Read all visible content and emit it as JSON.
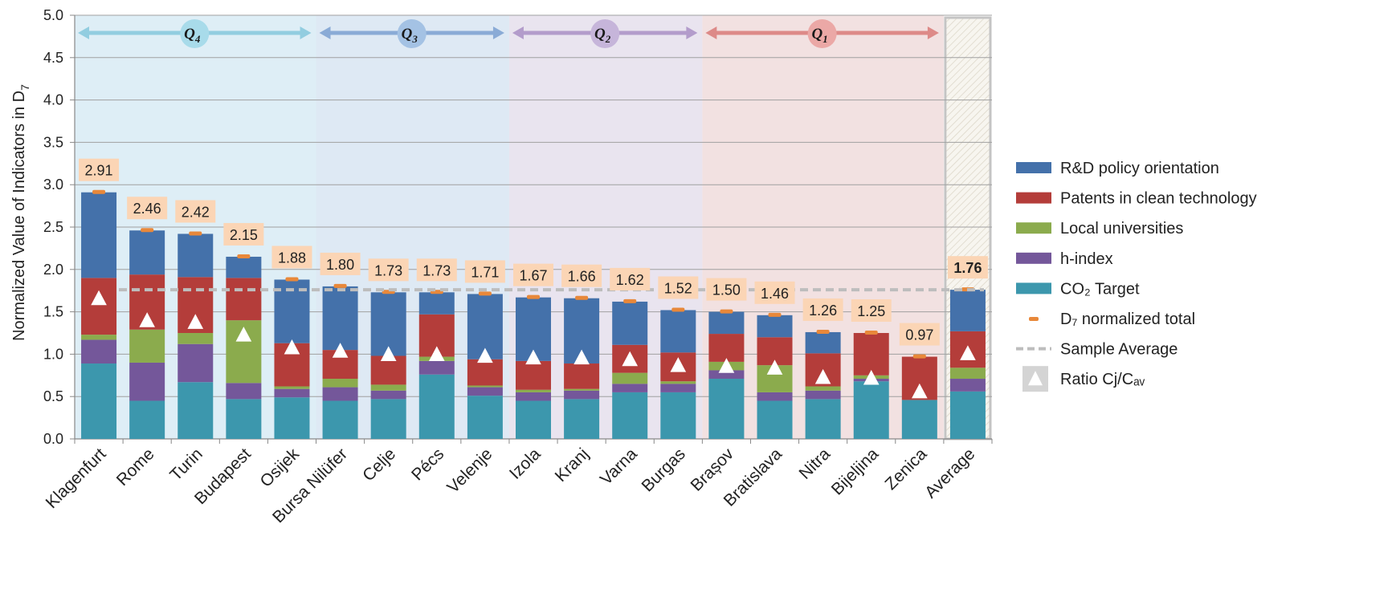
{
  "chart_data": {
    "type": "bar",
    "stacked": true,
    "ylabel": "Normalized Value of Indicators in D",
    "ylabel_sub": "7",
    "ylim": [
      0,
      5
    ],
    "yticks": [
      "0.0",
      "0.5",
      "1.0",
      "1.5",
      "2.0",
      "2.5",
      "3.0",
      "3.5",
      "4.0",
      "4.5",
      "5.0"
    ],
    "grid": true,
    "legend_position": "right",
    "categories": [
      "Klagenfurt",
      "Rome",
      "Turin",
      "Budapest",
      "Osijek",
      "Bursa Nilüfer",
      "Celje",
      "Pécs",
      "Velenje",
      "Izola",
      "Kranj",
      "Varna",
      "Burgas",
      "Brașov",
      "Bratislava",
      "Nitra",
      "Bijeljina",
      "Zenica",
      "Average"
    ],
    "series": [
      {
        "name": "CO₂ Target",
        "color": "#3c97ad",
        "values": [
          0.89,
          0.45,
          0.67,
          0.47,
          0.49,
          0.45,
          0.47,
          0.76,
          0.51,
          0.45,
          0.47,
          0.55,
          0.55,
          0.71,
          0.45,
          0.47,
          0.68,
          0.46,
          0.56
        ]
      },
      {
        "name": "h-index",
        "color": "#74579a",
        "values": [
          0.28,
          0.45,
          0.45,
          0.19,
          0.1,
          0.16,
          0.1,
          0.16,
          0.1,
          0.1,
          0.1,
          0.1,
          0.1,
          0.1,
          0.1,
          0.1,
          0.03,
          0.0,
          0.15
        ]
      },
      {
        "name": "Local universities",
        "color": "#8bab4d",
        "values": [
          0.06,
          0.39,
          0.13,
          0.74,
          0.03,
          0.1,
          0.07,
          0.05,
          0.02,
          0.03,
          0.02,
          0.13,
          0.03,
          0.1,
          0.32,
          0.05,
          0.04,
          0.0,
          0.13
        ]
      },
      {
        "name": "Patents in clean technology",
        "color": "#b43d3a",
        "values": [
          0.67,
          0.65,
          0.66,
          0.5,
          0.51,
          0.34,
          0.34,
          0.5,
          0.31,
          0.34,
          0.3,
          0.33,
          0.34,
          0.33,
          0.33,
          0.39,
          0.5,
          0.51,
          0.43
        ]
      },
      {
        "name": "R&D policy orientation",
        "color": "#4471aa",
        "values": [
          1.01,
          0.52,
          0.51,
          0.25,
          0.75,
          0.75,
          0.75,
          0.26,
          0.77,
          0.75,
          0.77,
          0.51,
          0.5,
          0.26,
          0.26,
          0.25,
          0.0,
          0.0,
          0.49
        ]
      }
    ],
    "totals": [
      2.91,
      2.46,
      2.42,
      2.15,
      1.88,
      1.8,
      1.73,
      1.73,
      1.71,
      1.67,
      1.66,
      1.62,
      1.52,
      1.5,
      1.46,
      1.26,
      1.25,
      0.97,
      1.76
    ],
    "total_labels": [
      "2.91",
      "2.46",
      "2.42",
      "2.15",
      "1.88",
      "1.80",
      "1.73",
      "1.73",
      "1.71",
      "1.67",
      "1.66",
      "1.62",
      "1.52",
      "1.50",
      "1.46",
      "1.26",
      "1.25",
      "0.97",
      "1.76"
    ],
    "ratio_markers": [
      1.65,
      1.39,
      1.37,
      1.22,
      1.07,
      1.03,
      0.99,
      0.99,
      0.97,
      0.95,
      0.95,
      0.93,
      0.86,
      0.85,
      0.83,
      0.72,
      0.71,
      0.55,
      1.0
    ],
    "sample_average": 1.76,
    "total_marker_color": "#e8883a",
    "label_box_color": "#fbd5b5",
    "quartiles": [
      {
        "label": "Q",
        "sub": "4",
        "start": 0,
        "end": 4,
        "band_color": "#deeef6",
        "arrow_color": "#92cde0",
        "badge_color": "#a8dbea"
      },
      {
        "label": "Q",
        "sub": "3",
        "start": 5,
        "end": 8,
        "band_color": "#dee9f4",
        "arrow_color": "#8aabd6",
        "badge_color": "#a4c2e4"
      },
      {
        "label": "Q",
        "sub": "2",
        "start": 9,
        "end": 12,
        "band_color": "#e9e4ef",
        "arrow_color": "#b39ccb",
        "badge_color": "#c6b5da"
      },
      {
        "label": "Q",
        "sub": "1",
        "start": 13,
        "end": 17,
        "band_color": "#f2e1e1",
        "arrow_color": "#dd8a88",
        "badge_color": "#eba8a6"
      }
    ],
    "legend": [
      {
        "key": "rd",
        "label": "R&D policy orientation"
      },
      {
        "key": "patents",
        "label": "Patents in clean technology"
      },
      {
        "key": "universities",
        "label": "Local universities"
      },
      {
        "key": "hindex",
        "label": "h-index"
      },
      {
        "key": "co2",
        "label": "CO₂ Target"
      },
      {
        "key": "total",
        "label": "D₇ normalized total"
      },
      {
        "key": "average",
        "label": "Sample Average"
      },
      {
        "key": "ratio",
        "label": "Ratio Cj/Cₐᵥ"
      }
    ]
  }
}
